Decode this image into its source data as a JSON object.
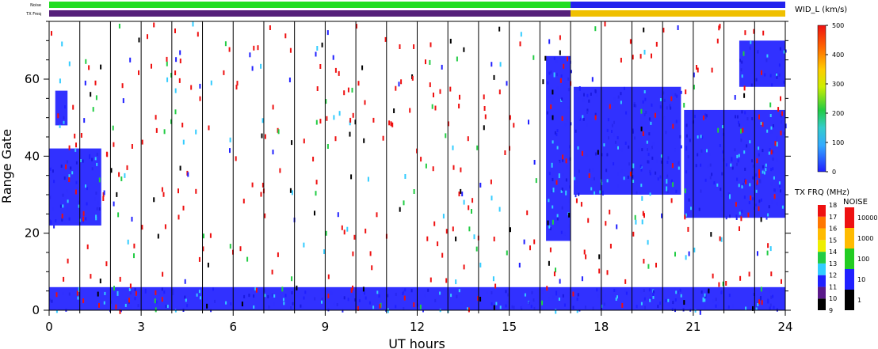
{
  "chart_data": {
    "type": "heatmap",
    "xlabel": "UT hours",
    "ylabel": "Range Gate",
    "x_ticks": [
      "0",
      "3",
      "6",
      "9",
      "12",
      "15",
      "18",
      "21",
      "24"
    ],
    "y_ticks": [
      "0",
      "20",
      "40",
      "60"
    ],
    "xlim": [
      0,
      24
    ],
    "ylim": [
      0,
      75
    ],
    "hour_gridlines": true,
    "top_bars": {
      "noise_label": "Noise",
      "txfreq_label": "TX Freq",
      "noise_segments": [
        {
          "start": 0,
          "end": 17,
          "color": "#22dd22"
        },
        {
          "start": 17,
          "end": 24,
          "color": "#2222ee"
        }
      ],
      "txfreq_segments": [
        {
          "start": 0,
          "end": 17,
          "color": "#55207a"
        },
        {
          "start": 17,
          "end": 24,
          "color": "#f0c000"
        }
      ]
    },
    "width_colorbar": {
      "title": "WID_L (km/s)",
      "ticks": [
        "0",
        "100",
        "200",
        "300",
        "400",
        "500"
      ],
      "range": [
        0,
        500
      ]
    },
    "txfreq_colorbar": {
      "title": "TX FRQ (MHz)",
      "ticks": [
        "9",
        "10",
        "11",
        "12",
        "13",
        "14",
        "15",
        "16",
        "17",
        "18"
      ],
      "colors": [
        "#000000",
        "#5a1a8a",
        "#2020ff",
        "#33ccff",
        "#22cc44",
        "#eeee00",
        "#ffbb00",
        "#ff7700",
        "#ee1111"
      ]
    },
    "noise_colorbar": {
      "title": "NOISE",
      "ticks": [
        "1",
        "10",
        "100",
        "1000",
        "10000"
      ],
      "colors": [
        "#000000",
        "#2020ff",
        "#22cc22",
        "#ffbb00",
        "#ee1111"
      ]
    },
    "regions": [
      {
        "x": [
          0,
          1.7
        ],
        "y": [
          22,
          42
        ],
        "value": "low"
      },
      {
        "x": [
          0.2,
          0.6
        ],
        "y": [
          48,
          57
        ],
        "value": "low"
      },
      {
        "x": [
          16.2,
          17.0
        ],
        "y": [
          18,
          66
        ],
        "value": "low"
      },
      {
        "x": [
          17.1,
          20.6
        ],
        "y": [
          30,
          58
        ],
        "value": "low"
      },
      {
        "x": [
          20.7,
          24
        ],
        "y": [
          24,
          52
        ],
        "value": "low"
      },
      {
        "x": [
          22.5,
          24
        ],
        "y": [
          58,
          70
        ],
        "value": "low"
      },
      {
        "x": [
          0,
          24
        ],
        "y": [
          0,
          6
        ],
        "value": "low"
      }
    ],
    "scatter_colors": [
      "#ee1111",
      "#2020ff",
      "#33ccff",
      "#22cc44",
      "#000000"
    ]
  }
}
